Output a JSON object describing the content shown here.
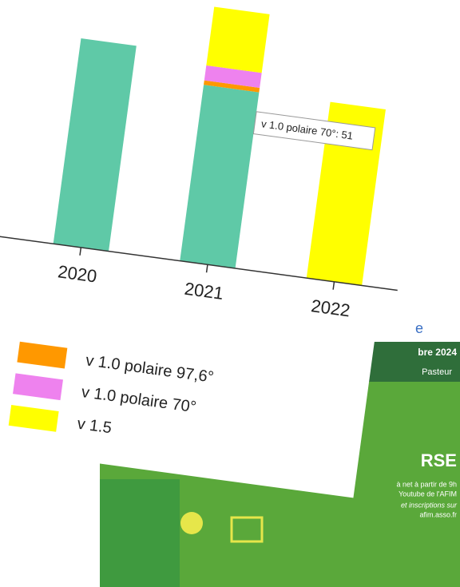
{
  "chart_data": {
    "type": "stacked-bar",
    "categories": [
      "2020",
      "2021",
      "2022"
    ],
    "series": [
      {
        "color": "#5fc9a7",
        "values": [
          700,
          600,
          0
        ]
      },
      {
        "name": "v 1.0 polaire 97,6°",
        "color": "#ff9800",
        "values": [
          0,
          15,
          0
        ]
      },
      {
        "name": "v 1.0 polaire 70°",
        "color": "#ee82ee",
        "values": [
          0,
          51,
          0
        ]
      },
      {
        "name": "v 1.5",
        "color": "#ffff00",
        "values": [
          0,
          200,
          600
        ]
      }
    ],
    "ylim": [
      0,
      890
    ],
    "tooltip": "v 1.0 polaire 70°: 51"
  },
  "background": {
    "texts": [
      "e",
      "bre 2024",
      "Pasteur",
      "RSE",
      "à net à partir de 9h",
      "Youtube de l'AFIM",
      "et inscriptions sur",
      "afim.asso.fr"
    ]
  }
}
